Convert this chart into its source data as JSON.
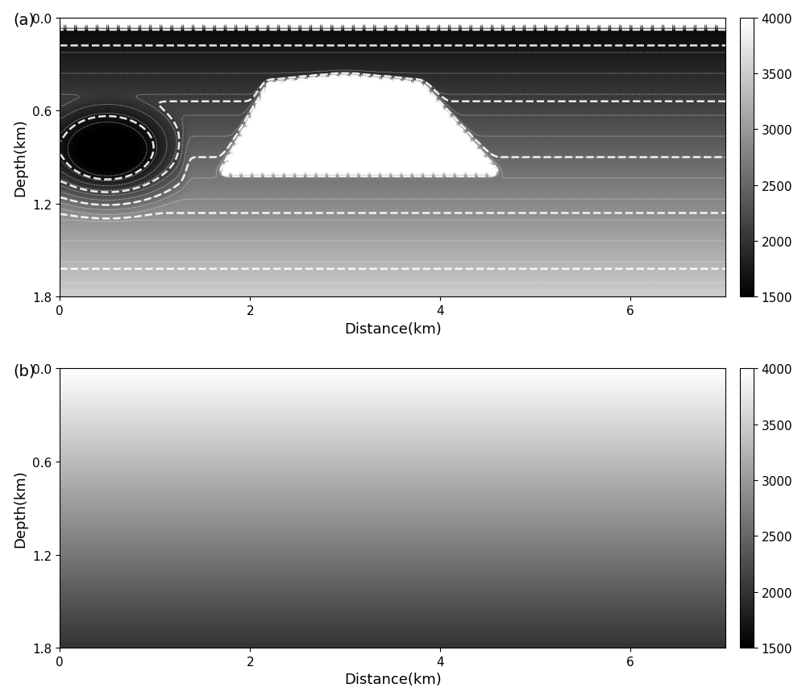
{
  "xlim": [
    0,
    7.0
  ],
  "ylim": [
    0,
    1.8
  ],
  "vmin": 1500,
  "vmax": 4000,
  "xlabel": "Distance(km)",
  "ylabel": "Depth(km)",
  "label_a": "(a)",
  "label_b": "(b)",
  "colorbar_ticks": [
    1500,
    2000,
    2500,
    3000,
    3500,
    4000
  ],
  "background_color": "#ffffff",
  "cmap": "gray",
  "nx": 351,
  "nz": 181,
  "xticks": [
    0,
    2,
    4,
    6
  ],
  "yticks": [
    0,
    0.6,
    1.2,
    1.8
  ],
  "label_fontsize": 14,
  "axis_fontsize": 13,
  "cb_fontsize": 11
}
